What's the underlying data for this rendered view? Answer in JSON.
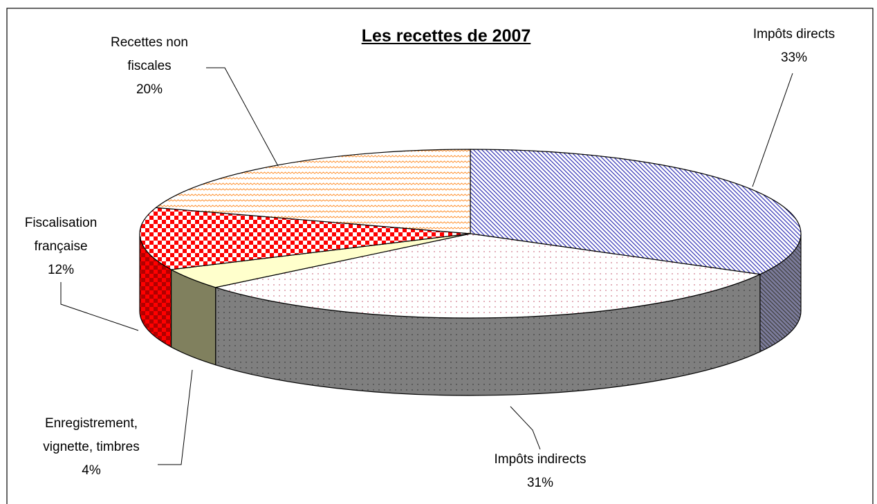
{
  "chart_data": {
    "type": "pie",
    "title": "Les recettes de 2007",
    "categories": [
      "Impôts directs",
      "Impôts indirects",
      "Enregistrement, vignette, timbres",
      "Fiscalisation française",
      "Recettes non fiscales"
    ],
    "values": [
      33,
      31,
      4,
      12,
      20
    ],
    "value_labels": [
      "33%",
      "31%",
      "4%",
      "12%",
      "20%"
    ],
    "colors": [
      "#3a3ab8",
      "#d0788a",
      "#ffffcc",
      "#ff0000",
      "#ff9a40"
    ],
    "side_colors": [
      "#7c7c9c",
      "#7f7f7f",
      "#80805e",
      "#b00000",
      "#c07030"
    ]
  }
}
